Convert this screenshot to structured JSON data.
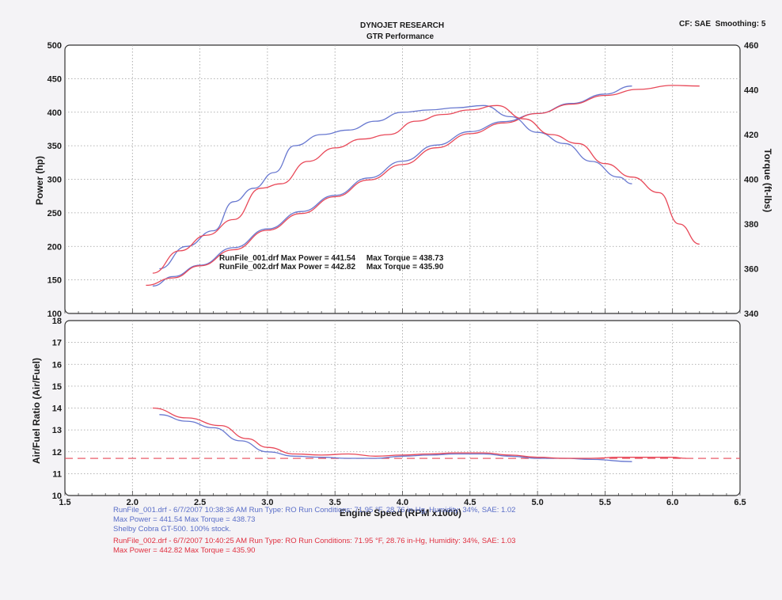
{
  "header": {
    "title": "DYNOJET RESEARCH",
    "subtitle": "GTR Performance",
    "cf_label": "CF: SAE",
    "smoothing_label": "Smoothing: 5"
  },
  "chart_data": [
    {
      "type": "line",
      "name": "power-torque-panel",
      "xlabel": "",
      "ylabel": "Power (hp)",
      "ylabel_right": "Torque (ft-lbs)",
      "xlim": [
        1.5,
        6.5
      ],
      "ylim": [
        100,
        500
      ],
      "ylim_right": [
        340,
        460
      ],
      "xticks": [
        1.5,
        2.0,
        2.5,
        3.0,
        3.5,
        4.0,
        4.5,
        5.0,
        5.5,
        6.0,
        6.5
      ],
      "yticks": [
        100,
        150,
        200,
        250,
        300,
        350,
        400,
        450,
        500
      ],
      "yticks_right": [
        340,
        360,
        380,
        400,
        420,
        440,
        460
      ],
      "grid": true,
      "annotations": [
        "RunFile_001.drf Max Power = 441.54     Max Torque = 438.73",
        "RunFile_002.drf Max Power = 442.82     Max Torque = 435.90"
      ],
      "series": [
        {
          "run": "RunFile_001",
          "measure": "power",
          "axis": "left",
          "color": "#6878d0",
          "x": [
            2.15,
            2.3,
            2.5,
            2.75,
            3.0,
            3.25,
            3.5,
            3.75,
            4.0,
            4.25,
            4.5,
            4.75,
            5.0,
            5.25,
            5.5,
            5.7
          ],
          "y": [
            141,
            155,
            172,
            198,
            226,
            252,
            276,
            302,
            327,
            351,
            371,
            386,
            398,
            413,
            427,
            439
          ]
        },
        {
          "run": "RunFile_002",
          "measure": "power",
          "axis": "left",
          "color": "#e84858",
          "x": [
            2.1,
            2.3,
            2.5,
            2.75,
            3.0,
            3.25,
            3.5,
            3.75,
            4.0,
            4.25,
            4.5,
            4.75,
            5.0,
            5.25,
            5.5,
            5.75,
            6.0,
            6.2
          ],
          "y": [
            142,
            153,
            171,
            195,
            224,
            249,
            274,
            299,
            322,
            347,
            368,
            384,
            398,
            412,
            425,
            434,
            440,
            439
          ]
        },
        {
          "run": "RunFile_001",
          "measure": "torque",
          "axis": "right",
          "color": "#6878d0",
          "x": [
            2.2,
            2.4,
            2.6,
            2.75,
            2.9,
            3.05,
            3.2,
            3.4,
            3.6,
            3.8,
            4.0,
            4.2,
            4.4,
            4.6,
            4.8,
            5.0,
            5.2,
            5.4,
            5.6,
            5.7
          ],
          "y": [
            360,
            370,
            377,
            390,
            396,
            403,
            415,
            420,
            422,
            426,
            430,
            431,
            432,
            433,
            428,
            421,
            416,
            408,
            401,
            398
          ]
        },
        {
          "run": "RunFile_002",
          "measure": "torque",
          "axis": "right",
          "color": "#e84858",
          "x": [
            2.15,
            2.35,
            2.55,
            2.75,
            2.95,
            3.1,
            3.3,
            3.5,
            3.7,
            3.9,
            4.1,
            4.3,
            4.5,
            4.7,
            4.9,
            5.1,
            5.3,
            5.5,
            5.7,
            5.9,
            6.05,
            6.2
          ],
          "y": [
            358,
            368,
            375,
            382,
            396,
            398,
            408,
            414,
            418,
            420,
            426,
            429,
            431,
            433,
            427,
            420,
            416,
            407,
            401,
            394,
            380,
            371
          ]
        }
      ]
    },
    {
      "type": "line",
      "name": "air-fuel-panel",
      "xlabel": "Engine Speed (RPM x1000)",
      "ylabel": "Air/Fuel Ratio (Air/Fuel)",
      "xlim": [
        1.5,
        6.5
      ],
      "ylim": [
        10,
        18
      ],
      "xticks": [
        1.5,
        2.0,
        2.5,
        3.0,
        3.5,
        4.0,
        4.5,
        5.0,
        5.5,
        6.0,
        6.5
      ],
      "yticks": [
        10,
        11,
        12,
        13,
        14,
        15,
        16,
        17,
        18
      ],
      "grid": true,
      "reference_line": {
        "y": 11.7,
        "style": "dashed",
        "color": "#e84858"
      },
      "series": [
        {
          "run": "RunFile_001",
          "color": "#6878d0",
          "x": [
            2.2,
            2.4,
            2.6,
            2.8,
            3.0,
            3.2,
            3.4,
            3.6,
            3.8,
            4.0,
            4.2,
            4.4,
            4.6,
            4.8,
            5.0,
            5.2,
            5.4,
            5.7
          ],
          "y": [
            13.7,
            13.4,
            13.1,
            12.5,
            12.0,
            11.8,
            11.75,
            11.7,
            11.7,
            11.8,
            11.85,
            11.9,
            11.9,
            11.8,
            11.7,
            11.7,
            11.65,
            11.55
          ]
        },
        {
          "run": "RunFile_002",
          "color": "#e84858",
          "x": [
            2.15,
            2.4,
            2.65,
            2.85,
            3.0,
            3.2,
            3.4,
            3.6,
            3.8,
            4.0,
            4.2,
            4.4,
            4.6,
            4.8,
            5.0,
            5.2,
            5.4,
            5.6,
            5.8,
            6.0,
            6.1
          ],
          "y": [
            14.0,
            13.55,
            13.2,
            12.6,
            12.2,
            11.9,
            11.85,
            11.9,
            11.8,
            11.85,
            11.9,
            11.95,
            11.95,
            11.85,
            11.75,
            11.7,
            11.7,
            11.75,
            11.75,
            11.75,
            11.7
          ]
        }
      ]
    }
  ],
  "footer": {
    "run1_line1": "RunFile_001.drf - 6/7/2007 10:38:36 AM  Run Type: RO  Run Conditions: 71.95 °F, 28.76 in-Hg,  Humidity:  34%, SAE: 1.02",
    "run1_line2": "Max Power = 441.54  Max Torque = 438.73",
    "run1_line3": "Shelby Cobra GT-500. 100% stock.",
    "run2_line1": "RunFile_002.drf - 6/7/2007 10:40:25 AM  Run Type: RO  Run Conditions: 71.95 °F, 28.76 in-Hg,  Humidity:  34%, SAE: 1.03",
    "run2_line2": "Max Power = 442.82  Max Torque = 435.90"
  },
  "colors": {
    "run1": "#6878d0",
    "run2": "#e84858",
    "grid": "#9a9a9a",
    "frame": "#333333"
  }
}
